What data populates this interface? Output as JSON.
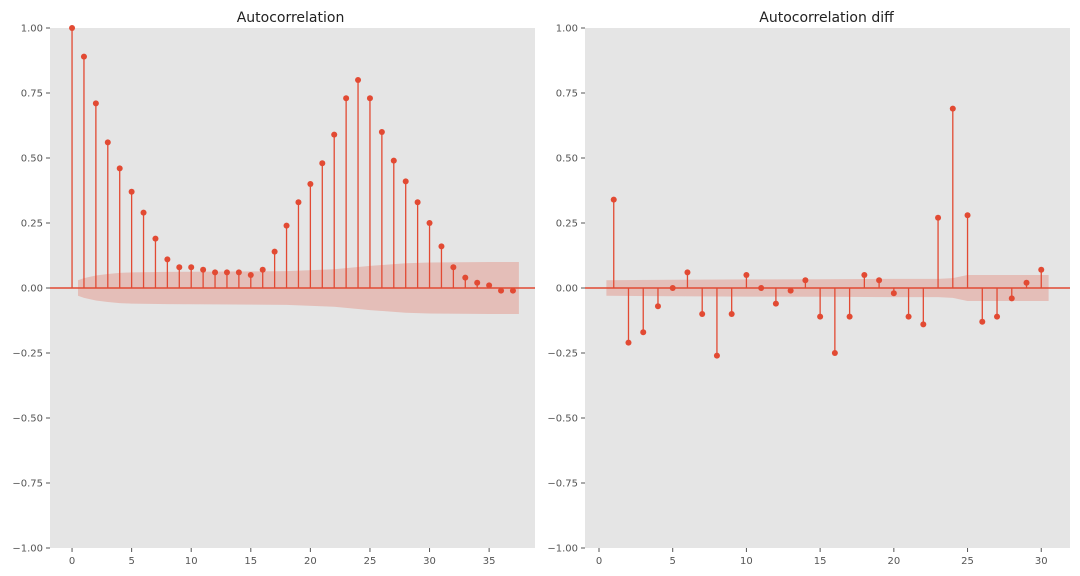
{
  "colors": {
    "background": "#E5E5E5",
    "stem": "#E24A33",
    "confidence_band": "#E24A33",
    "text": "#555555"
  },
  "chart_data": [
    {
      "type": "stem",
      "title": "Autocorrelation",
      "xlabel": "",
      "ylabel": "",
      "xlim": [
        -1.85,
        38.85
      ],
      "ylim": [
        -1.0,
        1.0
      ],
      "x_ticks": [
        0,
        5,
        10,
        15,
        20,
        25,
        30,
        35
      ],
      "y_ticks": [
        -1.0,
        -0.75,
        -0.5,
        -0.25,
        0.0,
        0.25,
        0.5,
        0.75,
        1.0
      ],
      "x_tick_labels": [
        "0",
        "5",
        "10",
        "15",
        "20",
        "25",
        "30",
        "35"
      ],
      "y_tick_labels": [
        "−1.00",
        "−0.75",
        "−0.50",
        "−0.25",
        "0.00",
        "0.25",
        "0.50",
        "0.75",
        "1.00"
      ],
      "grid": false,
      "lags": [
        0,
        1,
        2,
        3,
        4,
        5,
        6,
        7,
        8,
        9,
        10,
        11,
        12,
        13,
        14,
        15,
        16,
        17,
        18,
        19,
        20,
        21,
        22,
        23,
        24,
        25,
        26,
        27,
        28,
        29,
        30,
        31,
        32,
        33,
        34,
        35,
        36,
        37
      ],
      "values": [
        1.0,
        0.89,
        0.71,
        0.56,
        0.46,
        0.37,
        0.29,
        0.19,
        0.11,
        0.08,
        0.08,
        0.07,
        0.06,
        0.06,
        0.06,
        0.05,
        0.07,
        0.14,
        0.24,
        0.33,
        0.4,
        0.48,
        0.59,
        0.73,
        0.8,
        0.73,
        0.6,
        0.49,
        0.41,
        0.33,
        0.25,
        0.16,
        0.08,
        0.04,
        0.02,
        0.01,
        -0.01,
        -0.01
      ],
      "confidence_band": {
        "lags": [
          0.5,
          1,
          2,
          3,
          4,
          5,
          8,
          12,
          18,
          22,
          25,
          28,
          30,
          35,
          37.5
        ],
        "upper": [
          0.03,
          0.038,
          0.048,
          0.054,
          0.058,
          0.06,
          0.062,
          0.063,
          0.065,
          0.072,
          0.085,
          0.095,
          0.098,
          0.1,
          0.1
        ],
        "lower": [
          -0.03,
          -0.038,
          -0.048,
          -0.054,
          -0.058,
          -0.06,
          -0.062,
          -0.063,
          -0.065,
          -0.072,
          -0.085,
          -0.095,
          -0.098,
          -0.1,
          -0.1
        ]
      }
    },
    {
      "type": "stem",
      "title": "Autocorrelation diff",
      "xlabel": "",
      "ylabel": "",
      "xlim": [
        -0.95,
        31.95
      ],
      "ylim": [
        -1.0,
        1.0
      ],
      "x_ticks": [
        0,
        5,
        10,
        15,
        20,
        25,
        30
      ],
      "y_ticks": [
        -1.0,
        -0.75,
        -0.5,
        -0.25,
        0.0,
        0.25,
        0.5,
        0.75,
        1.0
      ],
      "x_tick_labels": [
        "0",
        "5",
        "10",
        "15",
        "20",
        "25",
        "30"
      ],
      "y_tick_labels": [
        "−1.00",
        "−0.75",
        "−0.50",
        "−0.25",
        "0.00",
        "0.25",
        "0.50",
        "0.75",
        "1.00"
      ],
      "grid": false,
      "lags": [
        1,
        2,
        3,
        4,
        5,
        6,
        7,
        8,
        9,
        10,
        11,
        12,
        13,
        14,
        15,
        16,
        17,
        18,
        19,
        20,
        21,
        22,
        23,
        24,
        25,
        26,
        27,
        28,
        29,
        30
      ],
      "values": [
        0.34,
        -0.21,
        -0.17,
        -0.07,
        0.0,
        0.06,
        -0.1,
        -0.26,
        -0.1,
        0.05,
        0.0,
        -0.06,
        -0.01,
        0.03,
        -0.11,
        -0.25,
        -0.11,
        0.05,
        0.03,
        -0.02,
        -0.11,
        -0.14,
        0.27,
        0.69,
        0.28,
        -0.13,
        -0.11,
        -0.04,
        0.02,
        0.07
      ],
      "confidence_band": {
        "lags": [
          0.5,
          5,
          10,
          15,
          20,
          23,
          24,
          25,
          30.5
        ],
        "upper": [
          0.03,
          0.032,
          0.033,
          0.034,
          0.035,
          0.035,
          0.038,
          0.05,
          0.05
        ],
        "lower": [
          -0.03,
          -0.032,
          -0.033,
          -0.034,
          -0.035,
          -0.035,
          -0.038,
          -0.05,
          -0.05
        ]
      }
    }
  ]
}
